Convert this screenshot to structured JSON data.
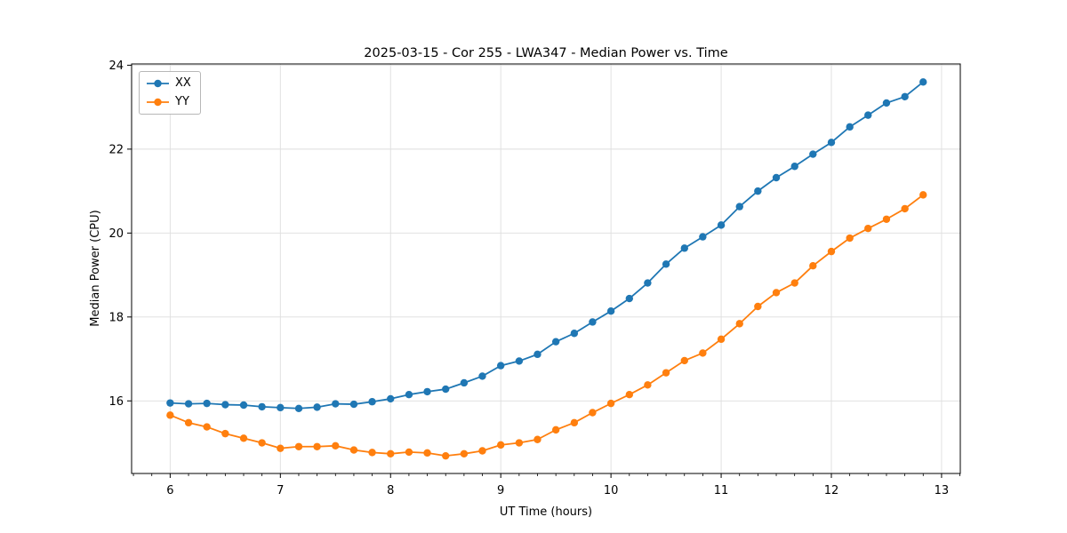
{
  "figure": {
    "background_color": "#ffffff",
    "grid_color": "#dedede",
    "spine_color": "#000000"
  },
  "chart_data": {
    "type": "line",
    "title": "2025-03-15 - Cor 255 - LWA347 - Median Power vs. Time",
    "xlabel": "UT Time (hours)",
    "ylabel": "Median Power (CPU)",
    "xlim": [
      5.65,
      13.17
    ],
    "ylim": [
      14.27,
      24.03
    ],
    "x_ticks": [
      6,
      7,
      8,
      9,
      10,
      11,
      12,
      13
    ],
    "y_ticks": [
      16,
      18,
      20,
      22,
      24
    ],
    "x_minor_tick_step": 0.166667,
    "grid": true,
    "legend_position": "upper-left",
    "x": [
      6.0,
      6.167,
      6.333,
      6.5,
      6.667,
      6.833,
      7.0,
      7.167,
      7.333,
      7.5,
      7.667,
      7.833,
      8.0,
      8.167,
      8.333,
      8.5,
      8.667,
      8.833,
      9.0,
      9.167,
      9.333,
      9.5,
      9.667,
      9.833,
      10.0,
      10.167,
      10.333,
      10.5,
      10.667,
      10.833,
      11.0,
      11.167,
      11.333,
      11.5,
      11.667,
      11.833,
      12.0,
      12.167,
      12.333,
      12.5,
      12.667,
      12.833
    ],
    "series": [
      {
        "name": "XX",
        "color": "#1f77b4",
        "marker": "circle",
        "values": [
          15.95,
          15.93,
          15.94,
          15.91,
          15.9,
          15.86,
          15.84,
          15.82,
          15.85,
          15.93,
          15.92,
          15.98,
          16.05,
          16.15,
          16.22,
          16.28,
          16.43,
          16.59,
          16.84,
          16.95,
          17.11,
          17.41,
          17.61,
          17.88,
          18.14,
          18.44,
          18.81,
          19.26,
          19.64,
          19.91,
          20.19,
          20.63,
          21.0,
          21.32,
          21.59,
          21.88,
          22.16,
          22.53,
          22.81,
          23.1,
          23.25,
          23.6
        ]
      },
      {
        "name": "YY",
        "color": "#ff7f0e",
        "marker": "circle",
        "values": [
          15.66,
          15.48,
          15.38,
          15.22,
          15.11,
          15.0,
          14.87,
          14.91,
          14.91,
          14.93,
          14.83,
          14.77,
          14.74,
          14.78,
          14.76,
          14.69,
          14.74,
          14.81,
          14.95,
          15.0,
          15.08,
          15.31,
          15.48,
          15.72,
          15.94,
          16.15,
          16.38,
          16.67,
          16.96,
          17.14,
          17.47,
          17.84,
          18.25,
          18.58,
          18.81,
          19.22,
          19.56,
          19.88,
          20.11,
          20.33,
          20.58,
          20.91
        ]
      }
    ]
  }
}
